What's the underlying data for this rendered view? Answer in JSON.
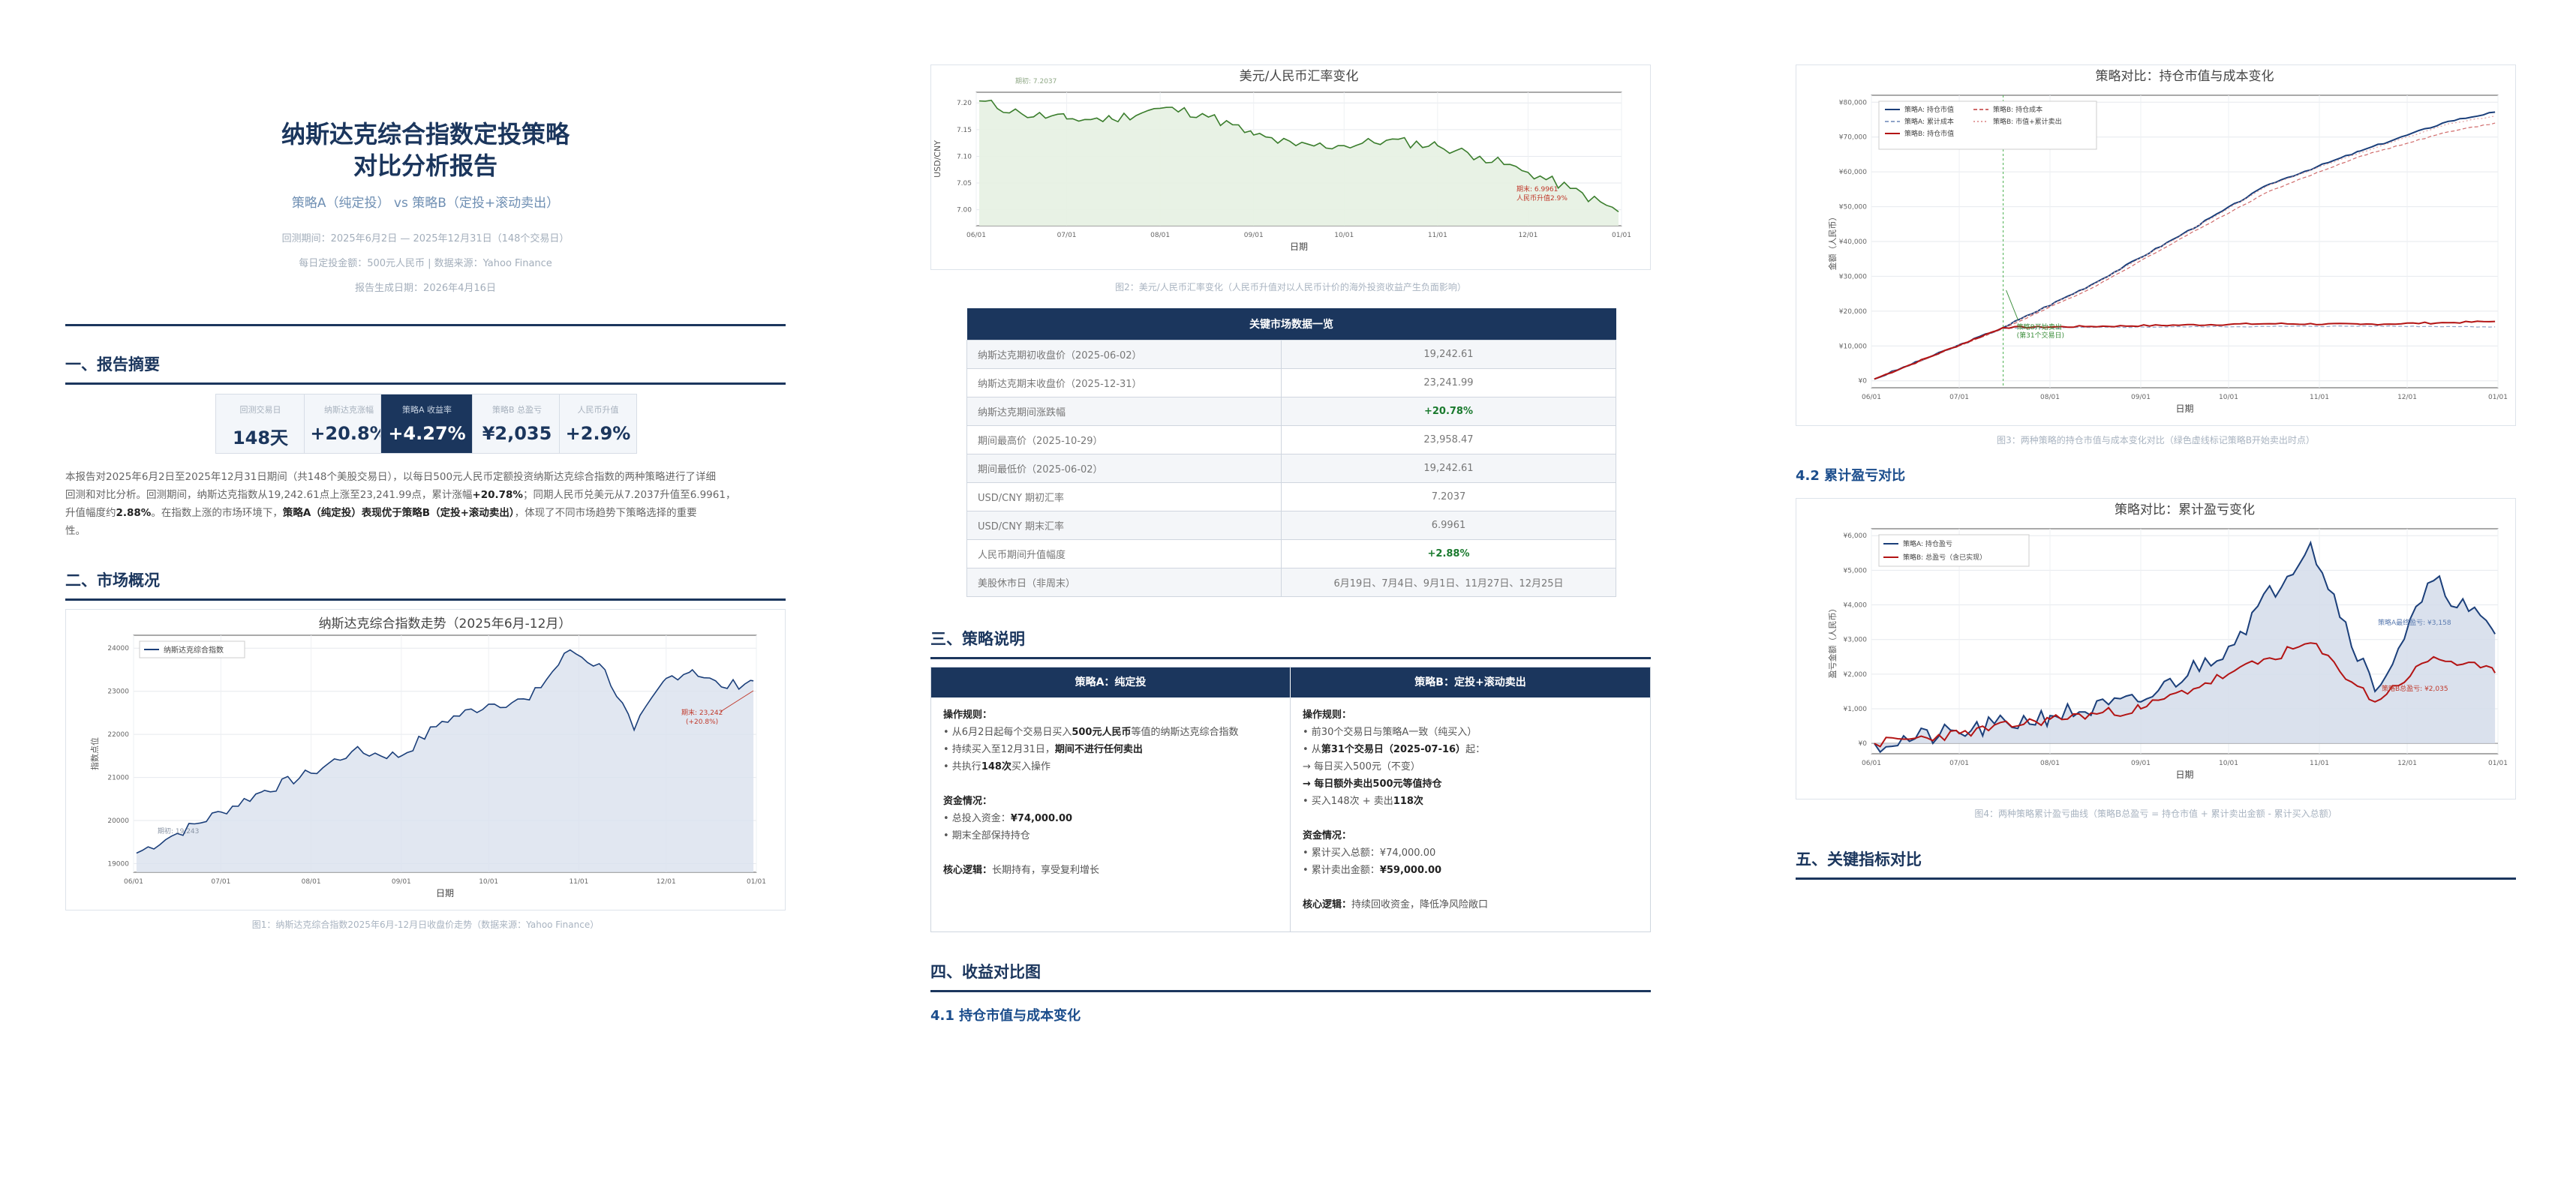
{
  "report": {
    "title_line1": "纳斯达克综合指数定投策略",
    "title_line2": "对比分析报告",
    "subtitle": "策略A（纯定投） vs 策略B（定投+滚动卖出）",
    "meta1": "回测期间：2025年6月2日 — 2025年12月31日（148个交易日）",
    "meta2": "每日定投金额：500元人民币 | 数据来源：Yahoo Finance",
    "meta3": "报告生成日期：2026年4月16日"
  },
  "sections": {
    "s1": "一、报告摘要",
    "s2": "二、市场概况",
    "s3": "三、策略说明",
    "s4": "四、收益对比图",
    "s4_1": "4.1 持仓市值与成本变化",
    "s4_2": "4.2 累计盈亏对比",
    "s5": "五、关键指标对比"
  },
  "metrics": [
    {
      "label": "回测交易日",
      "value": "148天",
      "highlight": false
    },
    {
      "label": "纳斯达克涨幅",
      "value": "+20.8%",
      "highlight": false
    },
    {
      "label": "策略A 收益率",
      "value": "+4.27%",
      "highlight": true
    },
    {
      "label": "策略B 总盈亏",
      "value": "¥2,035",
      "highlight": false
    },
    {
      "label": "人民币升值",
      "value": "+2.9%",
      "highlight": false
    }
  ],
  "summary": {
    "p1": "本报告对2025年6月2日至2025年12月31日期间（共148个美股交易日），以每日500元人民币定额投资纳斯达克综合指数的两种策略进行了详细",
    "p2a": "回测和对比分析。回测期间，纳斯达克指数从19,242.61点上涨至23,241.99点，累计涨幅",
    "p2b": "+20.78%",
    "p2c": "；同期人民币兑美元从7.2037升值至6.9961，",
    "p3a": "升值幅度约",
    "p3b": "2.88%",
    "p3c": "。在指数上涨的市场环境下，",
    "p3d": "策略A（纯定投）表现优于策略B（定投+滚动卖出）",
    "p3e": "，体现了不同市场趋势下策略选择的重要",
    "p4": "性。"
  },
  "chart1": {
    "title": "纳斯达克综合指数走势（2025年6月-12月）",
    "legend": "纳斯达克综合指数",
    "xlabel": "日期",
    "ylabel": "指数点位",
    "start_note": "期初: 19,243",
    "end_note1": "期末: 23,242",
    "end_note2": "(+20.8%)",
    "caption": "图1：纳斯达克综合指数2025年6月-12月日收盘价走势（数据来源：Yahoo Finance）"
  },
  "chart2": {
    "title": "美元/人民币汇率变化",
    "xlabel": "日期",
    "ylabel": "USD/CNY",
    "start_note": "期初: 7.2037",
    "end_note1": "期末: 6.9961",
    "end_note2": "人民币升值2.9%",
    "caption": "图2：美元/人民币汇率变化（人民币升值对以人民币计价的海外投资收益产生负面影响）"
  },
  "market_table": {
    "header": "关键市场数据一览",
    "rows": [
      {
        "k": "纳斯达克期初收盘价（2025-06-02）",
        "v": "19,242.61",
        "pos": false
      },
      {
        "k": "纳斯达克期末收盘价（2025-12-31）",
        "v": "23,241.99",
        "pos": false
      },
      {
        "k": "纳斯达克期间涨跌幅",
        "v": "+20.78%",
        "pos": true
      },
      {
        "k": "期间最高价（2025-10-29）",
        "v": "23,958.47",
        "pos": false
      },
      {
        "k": "期间最低价（2025-06-02）",
        "v": "19,242.61",
        "pos": false
      },
      {
        "k": "USD/CNY 期初汇率",
        "v": "7.2037",
        "pos": false
      },
      {
        "k": "USD/CNY 期末汇率",
        "v": "6.9961",
        "pos": false
      },
      {
        "k": "人民币期间升值幅度",
        "v": "+2.88%",
        "pos": true
      },
      {
        "k": "美股休市日（非周末）",
        "v": "6月19日、7月4日、9月1日、11月27日、12月25日",
        "pos": false
      }
    ]
  },
  "strategy": {
    "a_header": "策略A：纯定投",
    "b_header": "策略B：定投+滚动卖出",
    "ops": "操作规则：",
    "funds": "资金情况：",
    "core": "核心逻辑：",
    "a1a": "• 从6月2日起每个交易日买入",
    "a1b": "500元人民币",
    "a1c": "等值的纳斯达克综合指数",
    "a2a": "• 持续买入至12月31日，",
    "a2b": "期间不进行任何卖出",
    "a3a": "• 共执行",
    "a3b": "148次",
    "a3c": "买入操作",
    "af1a": "• 总投入资金：",
    "af1b": "¥74,000.00",
    "af2": "• 期末全部保持持仓",
    "a_core": "长期持有，享受复利增长",
    "b1": "• 前30个交易日与策略A一致（纯买入）",
    "b2a": "• 从",
    "b2b": "第31个交易日（2025-07-16）",
    "b2c": "起：",
    "b3": "→ 每日买入500元（不变）",
    "b4": "→ 每日额外卖出500元等值持仓",
    "b5a": "• 买入148次 + 卖出",
    "b5b": "118次",
    "bf1": "• 累计买入总额：¥74,000.00",
    "bf2a": "• 累计卖出金额：",
    "bf2b": "¥59,000.00",
    "b_core": "持续回收资金，降低净风险敞口"
  },
  "chart3": {
    "title": "策略对比：持仓市值与成本变化",
    "legend": [
      "策略A: 持仓市值",
      "策略B: 持仓成本",
      "策略A: 累计成本",
      "策略B: 市值+累计卖出",
      "策略B: 持仓市值"
    ],
    "xlabel": "日期",
    "ylabel": "金额（人民币）",
    "annot1": "策略B开始卖出",
    "annot2": "(第31个交易日)",
    "caption": "图3：两种策略的持仓市值与成本变化对比（绿色虚线标记策略B开始卖出时点）"
  },
  "chart4": {
    "title": "策略对比：累计盈亏变化",
    "legend": [
      "策略A: 持仓盈亏",
      "策略B: 总盈亏（含已实现）"
    ],
    "xlabel": "日期",
    "ylabel": "盈亏金额（人民币）",
    "end_a": "策略A最终盈亏: ¥3,158",
    "end_b": "策略B总盈亏: ¥2,035",
    "caption": "图4：两种策略累计盈亏曲线（策略B总盈亏 = 持仓市值 + 累计卖出金额 - 累计买入总额）"
  },
  "axis_months": [
    "06/01",
    "07/01",
    "08/01",
    "09/01",
    "10/01",
    "11/01",
    "12/01",
    "01/01"
  ],
  "chart_data": [
    {
      "type": "area",
      "title": "纳斯达克综合指数走势（2025年6月-12月）",
      "xlabel": "日期",
      "ylabel": "指数点位",
      "ylim": [
        18800,
        24300
      ],
      "y_ticks": [
        19000,
        20000,
        21000,
        22000,
        23000,
        24000
      ],
      "series": [
        {
          "name": "纳斯达克综合指数",
          "x": [
            "06/02",
            "06/16",
            "07/01",
            "07/16",
            "08/01",
            "08/15",
            "09/01",
            "09/15",
            "10/01",
            "10/15",
            "10/29",
            "11/10",
            "11/20",
            "12/01",
            "12/10",
            "12/20",
            "12/31"
          ],
          "values": [
            19243,
            19700,
            20200,
            20700,
            21100,
            21600,
            21500,
            22300,
            22700,
            22800,
            23958,
            23500,
            22100,
            23300,
            23500,
            23100,
            23242
          ]
        }
      ]
    },
    {
      "type": "area",
      "title": "美元/人民币汇率变化",
      "xlabel": "日期",
      "ylabel": "USD/CNY",
      "ylim": [
        6.97,
        7.22
      ],
      "y_ticks": [
        7.0,
        7.05,
        7.1,
        7.15,
        7.2
      ],
      "series": [
        {
          "name": "USD/CNY",
          "x": [
            "06/02",
            "06/16",
            "07/01",
            "07/16",
            "08/01",
            "08/15",
            "09/01",
            "09/15",
            "10/01",
            "10/15",
            "11/01",
            "11/15",
            "12/01",
            "12/15",
            "12/31"
          ],
          "values": [
            7.2037,
            7.18,
            7.17,
            7.17,
            7.19,
            7.18,
            7.14,
            7.12,
            7.12,
            7.13,
            7.12,
            7.1,
            7.07,
            7.04,
            6.9961
          ]
        }
      ]
    },
    {
      "type": "line",
      "title": "策略对比：持仓市值与成本变化",
      "xlabel": "日期",
      "ylabel": "金额（人民币）",
      "ylim": [
        -2000,
        82000
      ],
      "y_ticks": [
        0,
        10000,
        20000,
        30000,
        40000,
        50000,
        60000,
        70000,
        80000
      ],
      "x": [
        "06/02",
        "07/16",
        "08/15",
        "09/15",
        "10/15",
        "11/15",
        "12/15",
        "12/31"
      ],
      "series": [
        {
          "name": "策略A: 持仓市值",
          "values": [
            500,
            15300,
            27500,
            42000,
            56500,
            66000,
            74500,
            77158
          ]
        },
        {
          "name": "策略A: 累计成本",
          "values": [
            500,
            15000,
            26500,
            41000,
            54500,
            64500,
            71500,
            74000
          ]
        },
        {
          "name": "策略B: 持仓成本",
          "values": [
            500,
            15000,
            15300,
            15500,
            15600,
            15700,
            15600,
            15500
          ]
        },
        {
          "name": "策略B: 市值+累计卖出",
          "values": [
            500,
            15300,
            27300,
            41800,
            56300,
            65500,
            73800,
            76035
          ]
        },
        {
          "name": "策略B: 持仓市值",
          "values": [
            500,
            15300,
            15600,
            16000,
            16400,
            16200,
            16700,
            17035
          ]
        }
      ]
    },
    {
      "type": "line",
      "title": "策略对比：累计盈亏变化",
      "xlabel": "日期",
      "ylabel": "盈亏金额（人民币）",
      "ylim": [
        -300,
        6200
      ],
      "y_ticks": [
        0,
        1000,
        2000,
        3000,
        4000,
        5000,
        6000
      ],
      "x": [
        "06/02",
        "07/01",
        "08/01",
        "09/01",
        "10/01",
        "10/29",
        "11/20",
        "12/10",
        "12/31"
      ],
      "series": [
        {
          "name": "策略A: 持仓盈亏",
          "values": [
            0,
            300,
            800,
            1200,
            2800,
            5800,
            1500,
            4700,
            3158
          ]
        },
        {
          "name": "策略B: 总盈亏（含已实现）",
          "values": [
            0,
            280,
            700,
            1000,
            2000,
            2900,
            1200,
            2500,
            2035
          ]
        }
      ]
    }
  ]
}
